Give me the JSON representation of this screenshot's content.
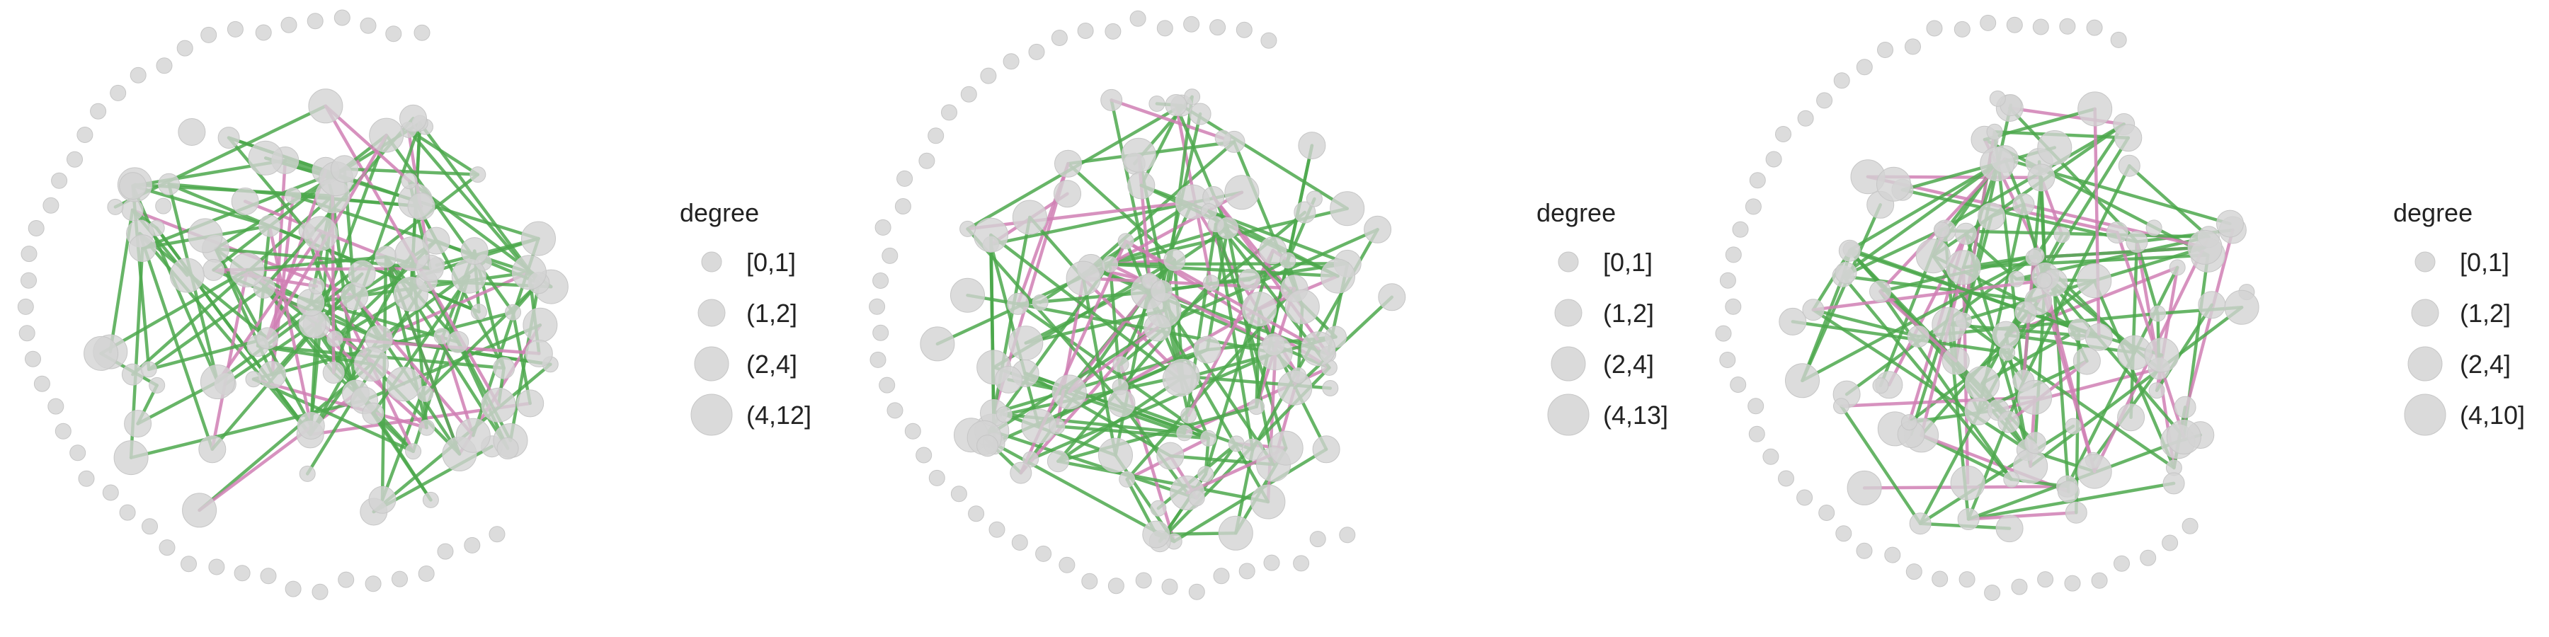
{
  "colors": {
    "node_fill": "#d3d3d3",
    "node_stroke": "#c6c6c6",
    "edge_positive": "#4ca84c",
    "edge_negative": "#d07fb4",
    "text": "#222222"
  },
  "panels": [
    {
      "legend": {
        "title": "degree",
        "items": [
          {
            "label": "[0,1]",
            "size_rank": 1
          },
          {
            "label": "(1,2]",
            "size_rank": 2
          },
          {
            "label": "(2,4]",
            "size_rank": 3
          },
          {
            "label": "(4,12]",
            "size_rank": 4
          }
        ]
      }
    },
    {
      "legend": {
        "title": "degree",
        "items": [
          {
            "label": "[0,1]",
            "size_rank": 1
          },
          {
            "label": "(1,2]",
            "size_rank": 2
          },
          {
            "label": "(2,4]",
            "size_rank": 3
          },
          {
            "label": "(4,13]",
            "size_rank": 4
          }
        ]
      }
    },
    {
      "legend": {
        "title": "degree",
        "items": [
          {
            "label": "[0,1]",
            "size_rank": 1
          },
          {
            "label": "(1,2]",
            "size_rank": 2
          },
          {
            "label": "(2,4]",
            "size_rank": 3
          },
          {
            "label": "(4,10]",
            "size_rank": 4
          }
        ]
      }
    }
  ]
}
